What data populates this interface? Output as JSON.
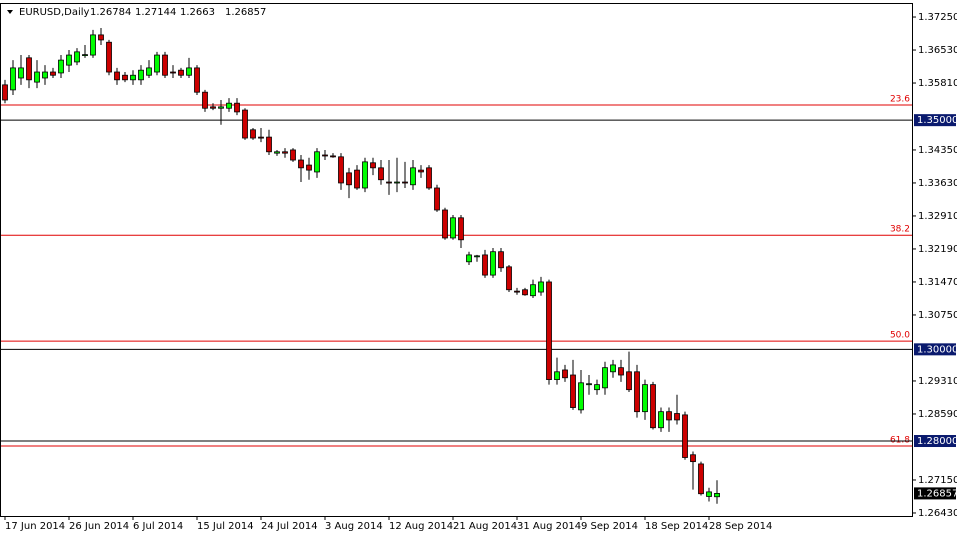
{
  "chart_data": {
    "type": "candlestick",
    "symbol": "EURUSD,Daily",
    "header_values": [
      1.26784,
      1.27144,
      1.2663,
      1.26857
    ],
    "categories": [
      "17 Jun 2014",
      null,
      null,
      null,
      null,
      null,
      null,
      null,
      "26 Jun 2014",
      null,
      null,
      null,
      null,
      null,
      null,
      null,
      "6 Jul 2014",
      null,
      null,
      null,
      null,
      null,
      null,
      null,
      "15 Jul 2014",
      null,
      null,
      null,
      null,
      null,
      null,
      null,
      "24 Jul 2014",
      null,
      null,
      null,
      null,
      null,
      null,
      null,
      "3 Aug 2014",
      null,
      null,
      null,
      null,
      null,
      null,
      null,
      "12 Aug 2014",
      null,
      null,
      null,
      null,
      null,
      null,
      null,
      "21 Aug 2014",
      null,
      null,
      null,
      null,
      null,
      null,
      null,
      "31 Aug 2014",
      null,
      null,
      null,
      null,
      null,
      null,
      null,
      "9 Sep 2014",
      null,
      null,
      null,
      null,
      null,
      null,
      null,
      "18 Sep 2014",
      null,
      null,
      null,
      null,
      null,
      null,
      null,
      "28 Sep 2014",
      null
    ],
    "ohlc": [
      [
        1.3577,
        1.3588,
        1.3537,
        1.3544
      ],
      [
        1.3566,
        1.3631,
        1.3555,
        1.3614
      ],
      [
        1.3592,
        1.3642,
        1.3577,
        1.3614
      ],
      [
        1.3636,
        1.3642,
        1.357,
        1.3588
      ],
      [
        1.3583,
        1.3631,
        1.357,
        1.3605
      ],
      [
        1.3592,
        1.362,
        1.3577,
        1.3605
      ],
      [
        1.3605,
        1.3614,
        1.3592,
        1.3598
      ],
      [
        1.3603,
        1.3642,
        1.3592,
        1.3631
      ],
      [
        1.362,
        1.3653,
        1.3605,
        1.3642
      ],
      [
        1.3627,
        1.3657,
        1.362,
        1.3649
      ],
      [
        1.3642,
        1.3664,
        1.3636,
        1.3643
      ],
      [
        1.3642,
        1.3697,
        1.3636,
        1.3686
      ],
      [
        1.3686,
        1.3701,
        1.3664,
        1.3675
      ],
      [
        1.367,
        1.3675,
        1.3598,
        1.3605
      ],
      [
        1.3605,
        1.3614,
        1.3577,
        1.3588
      ],
      [
        1.3598,
        1.3605,
        1.3583,
        1.3588
      ],
      [
        1.3588,
        1.3609,
        1.3577,
        1.3598
      ],
      [
        1.3588,
        1.362,
        1.3577,
        1.3609
      ],
      [
        1.3598,
        1.3631,
        1.3592,
        1.3614
      ],
      [
        1.3605,
        1.3649,
        1.3598,
        1.3642
      ],
      [
        1.3642,
        1.3649,
        1.3592,
        1.3598
      ],
      [
        1.3605,
        1.362,
        1.3592,
        1.3603
      ],
      [
        1.3609,
        1.3614,
        1.3592,
        1.3598
      ],
      [
        1.3598,
        1.3636,
        1.3592,
        1.3614
      ],
      [
        1.3614,
        1.362,
        1.3555,
        1.3561
      ],
      [
        1.3561,
        1.3566,
        1.3518,
        1.3526
      ],
      [
        1.3529,
        1.3537,
        1.3522,
        1.3526
      ],
      [
        1.3526,
        1.3544,
        1.349,
        1.3529
      ],
      [
        1.3526,
        1.3548,
        1.3518,
        1.3537
      ],
      [
        1.3537,
        1.3548,
        1.3511,
        1.3518
      ],
      [
        1.3522,
        1.3526,
        1.3457,
        1.3461
      ],
      [
        1.3479,
        1.3483,
        1.3457,
        1.3461
      ],
      [
        1.3463,
        1.3483,
        1.3452,
        1.3461
      ],
      [
        1.3463,
        1.3479,
        1.3424,
        1.3431
      ],
      [
        1.3428,
        1.3435,
        1.3422,
        1.3431
      ],
      [
        1.3431,
        1.3439,
        1.3418,
        1.3428
      ],
      [
        1.3435,
        1.3439,
        1.3409,
        1.3413
      ],
      [
        1.3413,
        1.3424,
        1.3365,
        1.3396
      ],
      [
        1.3402,
        1.3418,
        1.337,
        1.3391
      ],
      [
        1.3387,
        1.3439,
        1.3374,
        1.3431
      ],
      [
        1.3424,
        1.3435,
        1.3413,
        1.3422
      ],
      [
        1.3422,
        1.3428,
        1.3418,
        1.342
      ],
      [
        1.342,
        1.3428,
        1.3348,
        1.3363
      ],
      [
        1.3385,
        1.3396,
        1.333,
        1.3359
      ],
      [
        1.3391,
        1.3402,
        1.3348,
        1.3352
      ],
      [
        1.3352,
        1.3418,
        1.3343,
        1.3409
      ],
      [
        1.3407,
        1.3418,
        1.338,
        1.3396
      ],
      [
        1.3396,
        1.3413,
        1.3359,
        1.337
      ],
      [
        1.3365,
        1.3413,
        1.3337,
        1.3363
      ],
      [
        1.3363,
        1.3418,
        1.3343,
        1.3365
      ],
      [
        1.3365,
        1.3409,
        1.3352,
        1.3363
      ],
      [
        1.3359,
        1.3413,
        1.3348,
        1.3396
      ],
      [
        1.3391,
        1.3402,
        1.3374,
        1.3387
      ],
      [
        1.3396,
        1.3402,
        1.3348,
        1.3352
      ],
      [
        1.3352,
        1.3359,
        1.33,
        1.3304
      ],
      [
        1.3304,
        1.3309,
        1.3239,
        1.3243
      ],
      [
        1.3243,
        1.3293,
        1.3239,
        1.3287
      ],
      [
        1.3287,
        1.3293,
        1.3221,
        1.3239
      ],
      [
        1.3191,
        1.3213,
        1.3184,
        1.3206
      ],
      [
        1.3202,
        1.3206,
        1.3191,
        1.3204
      ],
      [
        1.3206,
        1.3217,
        1.3156,
        1.3162
      ],
      [
        1.3162,
        1.3221,
        1.3156,
        1.3213
      ],
      [
        1.3213,
        1.3221,
        1.3169,
        1.3178
      ],
      [
        1.318,
        1.3184,
        1.3125,
        1.313
      ],
      [
        1.3127,
        1.3134,
        1.3119,
        1.3125
      ],
      [
        1.313,
        1.3134,
        1.3117,
        1.3119
      ],
      [
        1.3117,
        1.3152,
        1.3112,
        1.3141
      ],
      [
        1.3125,
        1.3158,
        1.3117,
        1.3147
      ],
      [
        1.3147,
        1.3152,
        1.2923,
        1.2934
      ],
      [
        1.2934,
        1.2982,
        1.2923,
        1.2951
      ],
      [
        1.2955,
        1.2966,
        1.2929,
        1.2938
      ],
      [
        1.2944,
        1.2977,
        1.2868,
        1.2873
      ],
      [
        1.2868,
        1.2955,
        1.286,
        1.2927
      ],
      [
        1.2923,
        1.2944,
        1.2901,
        1.2925
      ],
      [
        1.2912,
        1.2934,
        1.2901,
        1.2923
      ],
      [
        1.2916,
        1.2973,
        1.2901,
        1.296
      ],
      [
        1.2951,
        1.2977,
        1.2938,
        1.2966
      ],
      [
        1.296,
        1.2977,
        1.2929,
        1.2944
      ],
      [
        1.2951,
        1.2995,
        1.2907,
        1.2912
      ],
      [
        1.2951,
        1.2966,
        1.2851,
        1.2864
      ],
      [
        1.2864,
        1.2934,
        1.2846,
        1.2923
      ],
      [
        1.2923,
        1.2929,
        1.2825,
        1.2829
      ],
      [
        1.2829,
        1.2873,
        1.282,
        1.2864
      ],
      [
        1.2864,
        1.2873,
        1.282,
        1.2846
      ],
      [
        1.286,
        1.2901,
        1.2836,
        1.2846
      ],
      [
        1.2857,
        1.2864,
        1.2759,
        1.2764
      ],
      [
        1.277,
        1.2777,
        1.2694,
        1.2755
      ],
      [
        1.275,
        1.2755,
        1.2681,
        1.2685
      ],
      [
        1.2679,
        1.2698,
        1.2668,
        1.2689
      ],
      [
        1.26784,
        1.27144,
        1.2663,
        1.26857
      ]
    ],
    "up_color": "#00ff00",
    "down_color": "#cc0000",
    "ylim": [
      1.26364,
      1.37534
    ],
    "yticks": [
      {
        "value": 1.3725,
        "label": "1.37250"
      },
      {
        "value": 1.3653,
        "label": "1.36530"
      },
      {
        "value": 1.3581,
        "label": "1.35810"
      },
      {
        "value": 1.3435,
        "label": "1.34350"
      },
      {
        "value": 1.3363,
        "label": "1.33630"
      },
      {
        "value": 1.3291,
        "label": "1.32910"
      },
      {
        "value": 1.3219,
        "label": "1.32190"
      },
      {
        "value": 1.3147,
        "label": "1.31470"
      },
      {
        "value": 1.3075,
        "label": "1.30750"
      },
      {
        "value": 1.2931,
        "label": "1.29310"
      },
      {
        "value": 1.2859,
        "label": "1.28590"
      },
      {
        "value": 1.2715,
        "label": "1.27150"
      },
      {
        "value": 1.2643,
        "label": "1.26430"
      }
    ],
    "fib_levels": [
      {
        "label": "23.6",
        "value": 1.3533
      },
      {
        "label": "38.2",
        "value": 1.3249
      },
      {
        "label": "50.0",
        "value": 1.3018
      },
      {
        "label": "61.8",
        "value": 1.2789
      }
    ],
    "fib_color": "#e00000",
    "hlines": [
      {
        "value": 1.35,
        "label": "1.35000"
      },
      {
        "value": 1.3,
        "label": "1.30000"
      },
      {
        "value": 1.28,
        "label": "1.28000"
      }
    ],
    "current_price": {
      "value": 1.26857,
      "label": "1.26857"
    }
  }
}
